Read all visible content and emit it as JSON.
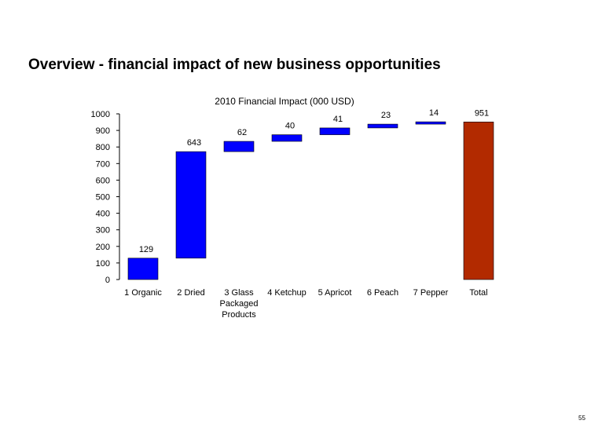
{
  "slide": {
    "title": "Overview - financial impact of new business opportunities",
    "page_number": "55"
  },
  "chart_data": {
    "type": "bar",
    "subtype": "waterfall",
    "title": "2010 Financial Impact (000 USD)",
    "xlabel": "",
    "ylabel": "",
    "ylim": [
      0,
      1000
    ],
    "yticks": [
      0,
      100,
      200,
      300,
      400,
      500,
      600,
      700,
      800,
      900,
      1000
    ],
    "grid": false,
    "legend": "none",
    "categories": [
      [
        "1  Organic"
      ],
      [
        "2  Dried"
      ],
      [
        "3  Glass",
        "Packaged",
        "Products"
      ],
      [
        "4  Ketchup"
      ],
      [
        "5  Apricot"
      ],
      [
        "6  Peach"
      ],
      [
        "7  Pepper"
      ],
      [
        "Total"
      ]
    ],
    "values": [
      129,
      643,
      62,
      40,
      41,
      23,
      14,
      951
    ],
    "data_labels": [
      "129",
      "643",
      "62",
      "40",
      "41",
      "23",
      "14",
      "951"
    ],
    "bar_colors": [
      "#0000ff",
      "#0000ff",
      "#0000ff",
      "#0000ff",
      "#0000ff",
      "#0000ff",
      "#0000ff",
      "#b22a00"
    ],
    "total_index": 7
  }
}
